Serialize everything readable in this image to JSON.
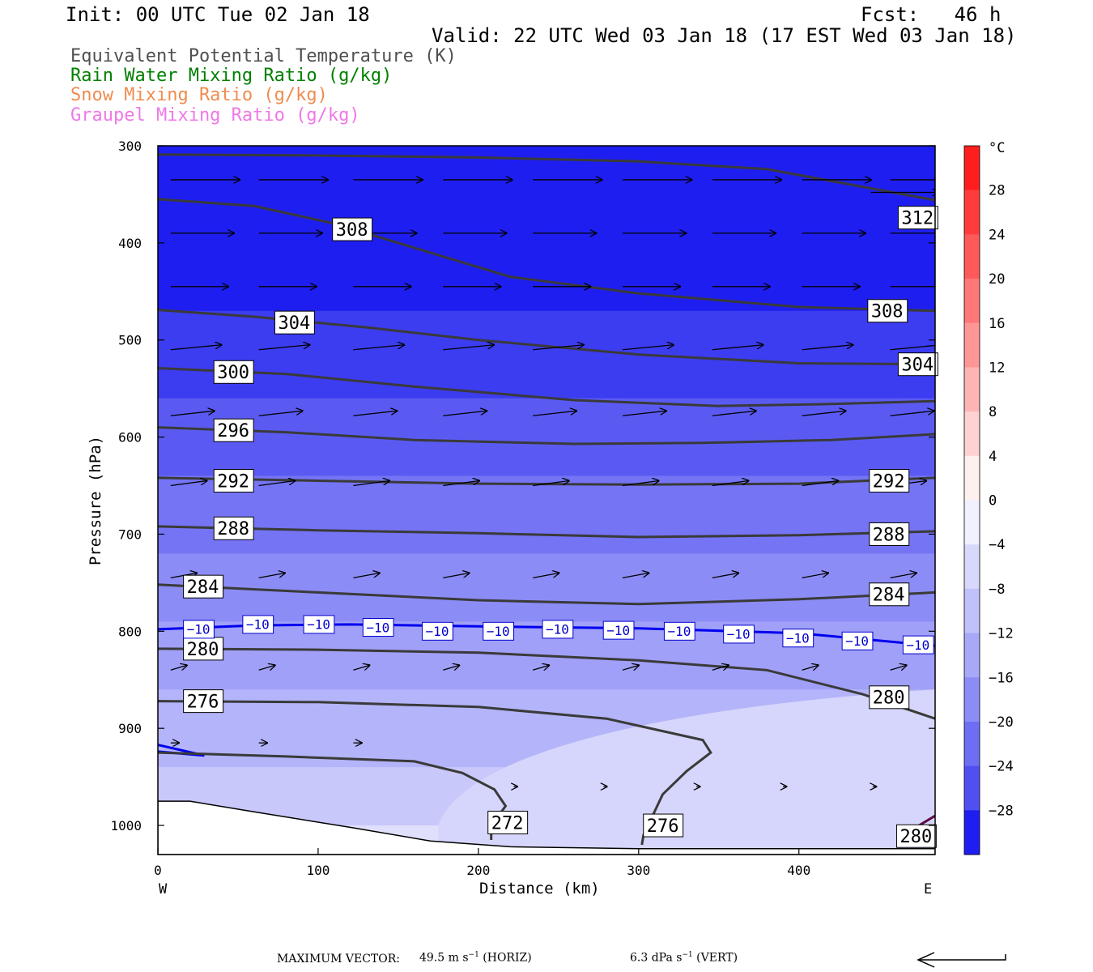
{
  "header": {
    "init": "Init: 00 UTC Tue 02 Jan 18",
    "fcst": "Fcst:   46 h",
    "valid": "Valid: 22 UTC Wed 03 Jan 18 (17 EST Wed 03 Jan 18)"
  },
  "legend": [
    {
      "label": "Equivalent Potential Temperature (K)",
      "color": "#505050"
    },
    {
      "label": "Rain Water Mixing Ratio (g/kg)",
      "color": "#008000"
    },
    {
      "label": "Snow Mixing Ratio (g/kg)",
      "color": "#f08c50"
    },
    {
      "label": "Graupel Mixing Ratio (g/kg)",
      "color": "#f078e6"
    }
  ],
  "colorbar": {
    "unit": "°C",
    "ticks": [
      "28",
      "24",
      "20",
      "16",
      "12",
      "8",
      "4",
      "0",
      "−4",
      "−8",
      "−12",
      "−16",
      "−20",
      "−24",
      "−28"
    ]
  },
  "footer": {
    "max_vector_label": "MAXIMUM VECTOR:",
    "horiz": "49.5 m s",
    "horiz_exp": "−1",
    "horiz_tag": " (HORIZ)",
    "vert": "6.3 dPa s",
    "vert_exp": "−1",
    "vert_tag": " (VERT)"
  },
  "chart_data": {
    "type": "contour",
    "xlabel": "Distance (km)",
    "ylabel": "Pressure (hPa)",
    "xlim": [
      0,
      485
    ],
    "ylim": [
      1030,
      300
    ],
    "x_ticks": [
      0,
      100,
      200,
      300,
      400
    ],
    "y_ticks": [
      300,
      400,
      500,
      600,
      700,
      800,
      900,
      1000
    ],
    "x_end_labels": {
      "left": "W",
      "right": "E"
    },
    "shading": "temperature (°C)",
    "theta_e_contours": [
      {
        "value": 312,
        "points": [
          [
            0,
            309
          ],
          [
            100,
            310
          ],
          [
            200,
            312
          ],
          [
            300,
            316
          ],
          [
            380,
            324
          ],
          [
            485,
            356
          ]
        ],
        "labels": [
          [
            464,
            374
          ]
        ]
      },
      {
        "value": 308,
        "points": [
          [
            0,
            355
          ],
          [
            60,
            362
          ],
          [
            110,
            380
          ],
          [
            160,
            405
          ],
          [
            220,
            435
          ],
          [
            300,
            452
          ],
          [
            400,
            466
          ],
          [
            485,
            470
          ]
        ],
        "labels": [
          [
            111,
            386
          ],
          [
            445,
            470
          ]
        ]
      },
      {
        "value": 304,
        "points": [
          [
            0,
            469
          ],
          [
            60,
            476
          ],
          [
            130,
            487
          ],
          [
            200,
            500
          ],
          [
            300,
            515
          ],
          [
            400,
            524
          ],
          [
            485,
            525
          ]
        ],
        "labels": [
          [
            75,
            482
          ],
          [
            464,
            525
          ]
        ]
      },
      {
        "value": 300,
        "points": [
          [
            0,
            529
          ],
          [
            80,
            535
          ],
          [
            160,
            548
          ],
          [
            260,
            562
          ],
          [
            350,
            568
          ],
          [
            420,
            566
          ],
          [
            485,
            563
          ]
        ],
        "labels": [
          [
            37,
            533
          ]
        ]
      },
      {
        "value": 296,
        "points": [
          [
            0,
            590
          ],
          [
            80,
            595
          ],
          [
            160,
            603
          ],
          [
            260,
            607
          ],
          [
            340,
            606
          ],
          [
            420,
            603
          ],
          [
            485,
            597
          ]
        ],
        "labels": [
          [
            37,
            593
          ]
        ]
      },
      {
        "value": 292,
        "points": [
          [
            0,
            642
          ],
          [
            100,
            645
          ],
          [
            200,
            648
          ],
          [
            300,
            649
          ],
          [
            400,
            648
          ],
          [
            485,
            642
          ]
        ],
        "labels": [
          [
            37,
            645
          ],
          [
            446,
            645
          ]
        ]
      },
      {
        "value": 288,
        "points": [
          [
            0,
            692
          ],
          [
            100,
            696
          ],
          [
            200,
            699
          ],
          [
            300,
            703
          ],
          [
            400,
            701
          ],
          [
            485,
            697
          ]
        ],
        "labels": [
          [
            37,
            694
          ],
          [
            446,
            700
          ]
        ]
      },
      {
        "value": 284,
        "points": [
          [
            0,
            752
          ],
          [
            100,
            760
          ],
          [
            200,
            768
          ],
          [
            300,
            772
          ],
          [
            400,
            767
          ],
          [
            485,
            760
          ]
        ],
        "labels": [
          [
            18,
            754
          ],
          [
            446,
            762
          ]
        ]
      },
      {
        "value": 280,
        "points": [
          [
            0,
            818
          ],
          [
            100,
            819
          ],
          [
            200,
            822
          ],
          [
            300,
            830
          ],
          [
            380,
            840
          ],
          [
            440,
            865
          ],
          [
            485,
            890
          ]
        ],
        "labels": [
          [
            18,
            818
          ],
          [
            446,
            868
          ]
        ]
      },
      {
        "value": 276,
        "points": [
          [
            0,
            872
          ],
          [
            100,
            873
          ],
          [
            200,
            878
          ],
          [
            280,
            890
          ],
          [
            340,
            912
          ],
          [
            345,
            925
          ],
          [
            330,
            944
          ],
          [
            315,
            968
          ],
          [
            303,
            1010
          ],
          [
            302,
            1020
          ]
        ],
        "labels": [
          [
            18,
            872
          ],
          [
            305,
            1000
          ]
        ]
      },
      {
        "value": 272,
        "points": [
          [
            0,
            925
          ],
          [
            80,
            929
          ],
          [
            160,
            934
          ],
          [
            190,
            946
          ],
          [
            210,
            963
          ],
          [
            217,
            980
          ],
          [
            208,
            1000
          ],
          [
            208,
            1015
          ]
        ],
        "labels": [
          [
            208,
            997
          ]
        ]
      },
      {
        "value": 280,
        "points": [
          [
            470,
            1005
          ],
          [
            485,
            990
          ]
        ],
        "labels": [
          [
            463,
            1011
          ]
        ]
      }
    ],
    "isotherm_contours": [
      {
        "value": -10,
        "color": "#0000ee",
        "points": [
          [
            0,
            798
          ],
          [
            60,
            794
          ],
          [
            120,
            793
          ],
          [
            200,
            795
          ],
          [
            300,
            797
          ],
          [
            400,
            802
          ],
          [
            485,
            815
          ]
        ],
        "labels": [
          [
            18,
            798
          ],
          [
            55,
            793
          ],
          [
            93,
            793
          ],
          [
            130,
            796
          ],
          [
            167,
            800
          ],
          [
            205,
            800
          ],
          [
            242,
            798
          ],
          [
            280,
            799
          ],
          [
            318,
            800
          ],
          [
            355,
            803
          ],
          [
            392,
            807
          ],
          [
            429,
            810
          ],
          [
            467,
            814
          ]
        ]
      },
      {
        "value": null,
        "color": "#0000ee",
        "points": [
          [
            0,
            917
          ],
          [
            29,
            928
          ],
          [
            0,
            924
          ]
        ],
        "labels": []
      }
    ],
    "wind_vectors": [
      {
        "p": 335,
        "x": [
          8,
          63,
          122,
          178,
          234,
          290,
          346,
          402,
          457
        ]
      },
      {
        "p": 348,
        "x": [
          445
        ]
      },
      {
        "p": 390,
        "x": [
          8,
          63,
          122,
          178,
          234,
          290,
          346,
          402,
          457
        ]
      },
      {
        "p": 445,
        "x": [
          8,
          63,
          122,
          178,
          234,
          290,
          346,
          402,
          457
        ]
      },
      {
        "p": 510,
        "x": [
          8,
          63,
          122,
          178,
          234,
          290,
          346,
          402,
          457
        ]
      },
      {
        "p": 578,
        "x": [
          8,
          63,
          122,
          178,
          234,
          290,
          346,
          402,
          457
        ]
      },
      {
        "p": 650,
        "x": [
          8,
          63,
          122,
          178,
          234,
          290,
          346,
          402,
          457
        ]
      },
      {
        "p": 745,
        "x": [
          8,
          63,
          122,
          178,
          234,
          290,
          346,
          402,
          457
        ]
      },
      {
        "p": 840,
        "x": [
          8,
          63,
          122,
          178,
          234,
          290,
          346,
          402,
          457
        ]
      },
      {
        "p": 915,
        "x": [
          8,
          63,
          122
        ]
      },
      {
        "p": 960,
        "x": [
          222,
          278,
          336,
          390,
          446
        ]
      }
    ],
    "terrain": [
      [
        0,
        975
      ],
      [
        20,
        975
      ],
      [
        60,
        986
      ],
      [
        120,
        1002
      ],
      [
        170,
        1016
      ],
      [
        220,
        1022
      ],
      [
        300,
        1024
      ],
      [
        485,
        1024
      ]
    ],
    "colorbar_levels": [
      -32,
      -28,
      -24,
      -20,
      -16,
      -12,
      -8,
      -4,
      0,
      4,
      8,
      12,
      16,
      20,
      24,
      28,
      32
    ]
  }
}
